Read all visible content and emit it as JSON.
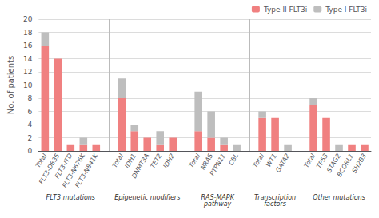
{
  "chart_data": {
    "type": "bar",
    "categories": [
      "Total",
      "FLT3-D835",
      "FLT3-ITD",
      "FLT3-N676K",
      "FLT3-N841K",
      "Total",
      "IDH1",
      "DNMT3A",
      "TET2",
      "IDH2",
      "Total",
      "NRAS",
      "PTPN11",
      "CBL",
      "Total",
      "WT1",
      "GATA2",
      "Total",
      "TP53",
      "STAG2",
      "BCORL1",
      "SH2B3"
    ],
    "series": [
      {
        "name": "Type II FLT3i",
        "color": "#F08080",
        "values": [
          16,
          14,
          1,
          1,
          1,
          8,
          3,
          2,
          1,
          2,
          3,
          2,
          1,
          0,
          5,
          5,
          0,
          7,
          5,
          0,
          1,
          1
        ]
      },
      {
        "name": "Type I FLT3i",
        "color": "#BEBEBE",
        "values": [
          2,
          0,
          0,
          1,
          0,
          3,
          1,
          0,
          2,
          0,
          6,
          4,
          1,
          1,
          1,
          0,
          1,
          1,
          0,
          1,
          0,
          0
        ]
      }
    ],
    "group_labels": [
      "FLT3 mutations",
      "Epigenetic modifiers",
      "RAS-MAPK\npathway",
      "Transcription\nfactors",
      "Other mutations"
    ],
    "group_sizes": [
      5,
      5,
      4,
      3,
      5
    ],
    "ylabel": "No. of patients",
    "ylim": [
      0,
      20
    ],
    "yticks": [
      0,
      2,
      4,
      6,
      8,
      10,
      12,
      14,
      16,
      18,
      20
    ],
    "stacked": true,
    "grid": true,
    "legend": "upper right"
  }
}
